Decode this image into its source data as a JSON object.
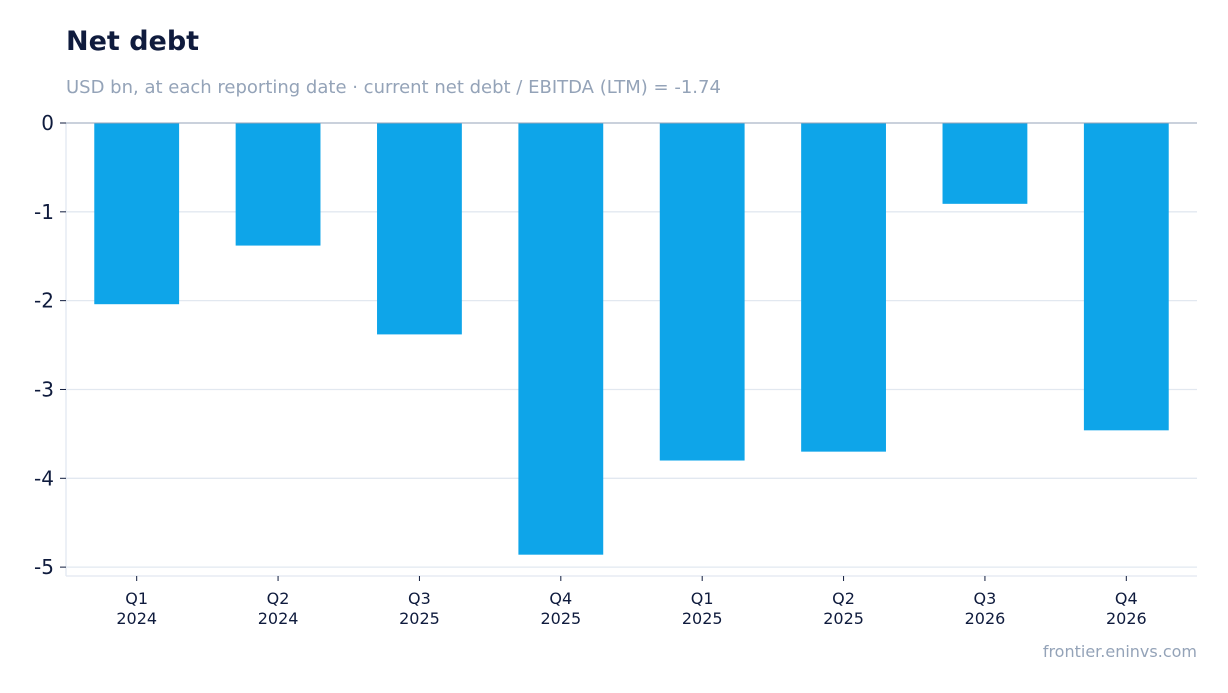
{
  "chart_data": {
    "type": "bar",
    "title": "Net debt",
    "subtitle": "USD bn, at each reporting date · current net debt / EBITDA (LTM) = -1.74",
    "categories": [
      [
        "Q1",
        "2024"
      ],
      [
        "Q2",
        "2024"
      ],
      [
        "Q3",
        "2025"
      ],
      [
        "Q4",
        "2025"
      ],
      [
        "Q1",
        "2025"
      ],
      [
        "Q2",
        "2025"
      ],
      [
        "Q3",
        "2026"
      ],
      [
        "Q4",
        "2026"
      ]
    ],
    "values": [
      -2.04,
      -1.38,
      -2.38,
      -4.86,
      -3.8,
      -3.7,
      -0.91,
      -3.46
    ],
    "ylim": [
      -5.1,
      0
    ],
    "yticks": [
      0,
      -1,
      -2,
      -3,
      -4,
      -5
    ],
    "ytick_labels": [
      "0",
      "-1",
      "-2",
      "-3",
      "-4",
      "-5"
    ],
    "xlabel": "",
    "ylabel": "",
    "grid": true,
    "bar_color": "#0ea5e9",
    "grid_color": "#e2e8f0",
    "zero_line_color": "#94a3b8",
    "source": "frontier.eninvs.com"
  }
}
